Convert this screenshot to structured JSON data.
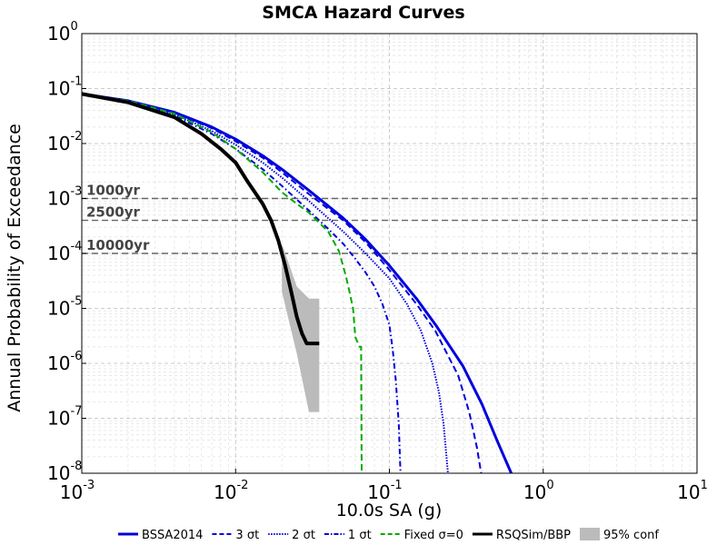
{
  "chart_data": {
    "type": "line",
    "title": "SMCA Hazard Curves",
    "xlabel": "10.0s SA (g)",
    "ylabel": "Annual Probability of Exceedance",
    "xscale": "log",
    "yscale": "log",
    "xlim": [
      0.001,
      10
    ],
    "ylim": [
      1e-08,
      1
    ],
    "x_ticks": [
      {
        "base": "10",
        "exp": "-3"
      },
      {
        "base": "10",
        "exp": "-2"
      },
      {
        "base": "10",
        "exp": "-1"
      },
      {
        "base": "10",
        "exp": "0"
      },
      {
        "base": "10",
        "exp": "1"
      }
    ],
    "y_ticks": [
      {
        "base": "10",
        "exp": "0"
      },
      {
        "base": "10",
        "exp": "-1"
      },
      {
        "base": "10",
        "exp": "-2"
      },
      {
        "base": "10",
        "exp": "-3"
      },
      {
        "base": "10",
        "exp": "-4"
      },
      {
        "base": "10",
        "exp": "-5"
      },
      {
        "base": "10",
        "exp": "-6"
      },
      {
        "base": "10",
        "exp": "-7"
      },
      {
        "base": "10",
        "exp": "-8"
      }
    ],
    "grid": true,
    "legend_position": "bottom",
    "return_periods": [
      {
        "label": "1000yr",
        "value": 0.001
      },
      {
        "label": "2500yr",
        "value": 0.0004
      },
      {
        "label": "10000yr",
        "value": 0.0001
      }
    ],
    "series": [
      {
        "name": "BSSA2014",
        "color": "#0000dd",
        "style": "solid",
        "width": 3,
        "points": [
          [
            0.001,
            0.08
          ],
          [
            0.002,
            0.06
          ],
          [
            0.004,
            0.037
          ],
          [
            0.007,
            0.02
          ],
          [
            0.01,
            0.012
          ],
          [
            0.015,
            0.006
          ],
          [
            0.02,
            0.0034
          ],
          [
            0.03,
            0.0014
          ],
          [
            0.05,
            0.00044
          ],
          [
            0.07,
            0.00018
          ],
          [
            0.1,
            6e-05
          ],
          [
            0.15,
            1.5e-05
          ],
          [
            0.2,
            5e-06
          ],
          [
            0.3,
            9e-07
          ],
          [
            0.4,
            1.8e-07
          ],
          [
            0.5,
            4e-08
          ],
          [
            0.62,
            1e-08
          ]
        ]
      },
      {
        "name": "3 σt",
        "color": "#0000dd",
        "style": "dashed",
        "width": 2,
        "points": [
          [
            0.001,
            0.08
          ],
          [
            0.002,
            0.06
          ],
          [
            0.004,
            0.036
          ],
          [
            0.007,
            0.019
          ],
          [
            0.01,
            0.011
          ],
          [
            0.015,
            0.0055
          ],
          [
            0.02,
            0.003
          ],
          [
            0.03,
            0.0012
          ],
          [
            0.05,
            0.0004
          ],
          [
            0.07,
            0.00016
          ],
          [
            0.1,
            5e-05
          ],
          [
            0.15,
            1.2e-05
          ],
          [
            0.2,
            3.8e-06
          ],
          [
            0.28,
            6e-07
          ],
          [
            0.33,
            1.3e-07
          ],
          [
            0.37,
            3e-08
          ],
          [
            0.395,
            1e-08
          ]
        ]
      },
      {
        "name": "2 σt",
        "color": "#0000dd",
        "style": "dotted",
        "width": 2,
        "points": [
          [
            0.001,
            0.08
          ],
          [
            0.002,
            0.06
          ],
          [
            0.004,
            0.034
          ],
          [
            0.007,
            0.017
          ],
          [
            0.01,
            0.0095
          ],
          [
            0.015,
            0.0045
          ],
          [
            0.02,
            0.0024
          ],
          [
            0.03,
            0.0009
          ],
          [
            0.05,
            0.00025
          ],
          [
            0.07,
            0.0001
          ],
          [
            0.1,
            3.5e-05
          ],
          [
            0.13,
            1.2e-05
          ],
          [
            0.16,
            4e-06
          ],
          [
            0.19,
            1e-06
          ],
          [
            0.21,
            3e-07
          ],
          [
            0.225,
            8e-08
          ],
          [
            0.235,
            2e-08
          ],
          [
            0.24,
            1e-08
          ]
        ]
      },
      {
        "name": "1 σt",
        "color": "#0000dd",
        "style": "dashdot",
        "width": 2,
        "points": [
          [
            0.001,
            0.08
          ],
          [
            0.002,
            0.058
          ],
          [
            0.004,
            0.032
          ],
          [
            0.007,
            0.015
          ],
          [
            0.01,
            0.008
          ],
          [
            0.015,
            0.0034
          ],
          [
            0.02,
            0.0017
          ],
          [
            0.03,
            0.0006
          ],
          [
            0.04,
            0.00028
          ],
          [
            0.05,
            0.00015
          ],
          [
            0.06,
            8e-05
          ],
          [
            0.07,
            4.5e-05
          ],
          [
            0.08,
            2.5e-05
          ],
          [
            0.09,
            1.2e-05
          ],
          [
            0.1,
            5e-06
          ],
          [
            0.105,
            1.8e-06
          ],
          [
            0.11,
            5e-07
          ],
          [
            0.115,
            8e-08
          ],
          [
            0.118,
            1e-08
          ]
        ]
      },
      {
        "name": "Fixed σ=0",
        "color": "#00aa00",
        "style": "dashed",
        "width": 2,
        "points": [
          [
            0.001,
            0.08
          ],
          [
            0.002,
            0.06
          ],
          [
            0.004,
            0.035
          ],
          [
            0.007,
            0.016
          ],
          [
            0.01,
            0.008
          ],
          [
            0.015,
            0.003
          ],
          [
            0.02,
            0.0013
          ],
          [
            0.025,
            0.0008
          ],
          [
            0.03,
            0.00055
          ],
          [
            0.04,
            0.00025
          ],
          [
            0.047,
            0.00011
          ],
          [
            0.052,
            4e-05
          ],
          [
            0.055,
            2e-05
          ],
          [
            0.058,
            1e-05
          ],
          [
            0.06,
            3e-06
          ],
          [
            0.064,
            2e-06
          ],
          [
            0.0655,
            2e-06
          ],
          [
            0.066,
            1e-08
          ]
        ]
      },
      {
        "name": "RSQSim/BBP",
        "color": "#000000",
        "style": "solid",
        "width": 4,
        "points": [
          [
            0.001,
            0.08
          ],
          [
            0.002,
            0.056
          ],
          [
            0.004,
            0.03
          ],
          [
            0.006,
            0.015
          ],
          [
            0.008,
            0.008
          ],
          [
            0.01,
            0.0045
          ],
          [
            0.012,
            0.002
          ],
          [
            0.015,
            0.0008
          ],
          [
            0.017,
            0.0004
          ],
          [
            0.019,
            0.00017
          ],
          [
            0.021,
            6e-05
          ],
          [
            0.023,
            2e-05
          ],
          [
            0.025,
            7e-06
          ],
          [
            0.027,
            3.5e-06
          ],
          [
            0.029,
            2.3e-06
          ],
          [
            0.031,
            2.3e-06
          ],
          [
            0.035,
            2.3e-06
          ]
        ]
      }
    ],
    "confidence_band": {
      "name": "95% conf",
      "color": "#bbbbbb",
      "x": [
        0.02,
        0.025,
        0.03,
        0.035
      ],
      "upper": [
        0.00015,
        2.5e-05,
        1.5e-05,
        1.5e-05
      ],
      "lower": [
        2e-05,
        1.5e-06,
        1.3e-07,
        1.3e-07
      ]
    }
  }
}
